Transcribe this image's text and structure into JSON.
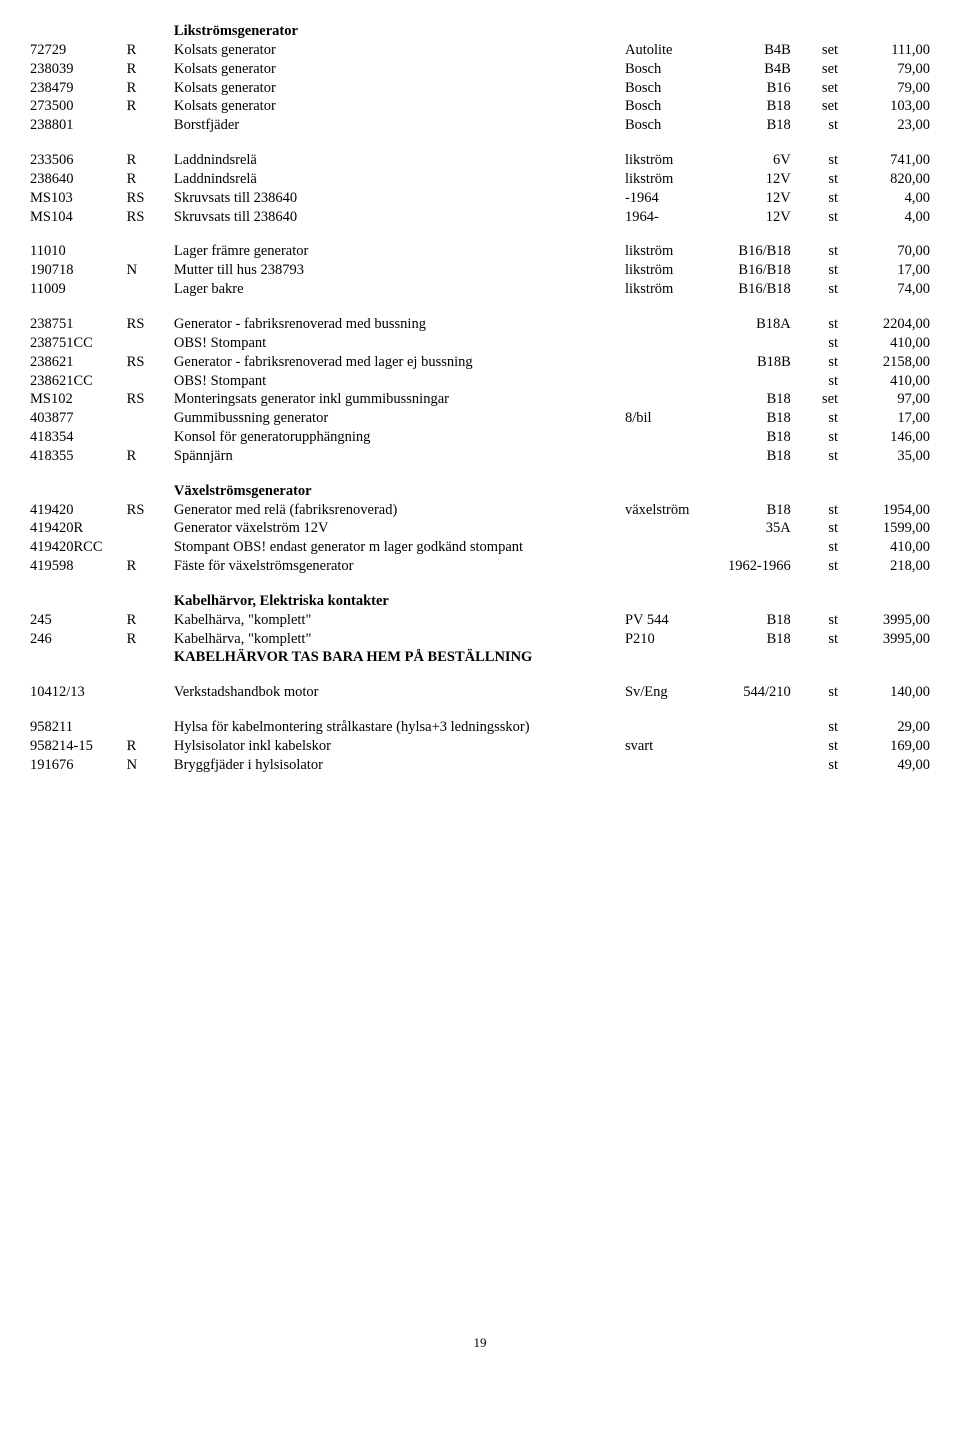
{
  "sections": [
    {
      "type": "heading",
      "text": "Likströmsgenerator"
    },
    {
      "type": "row",
      "c0": "72729",
      "c1": "R",
      "c2": "Kolsats generator",
      "c3": "Autolite",
      "c4": "B4B",
      "c5": "set",
      "c6": "111,00"
    },
    {
      "type": "row",
      "c0": "238039",
      "c1": "R",
      "c2": "Kolsats generator",
      "c3": "Bosch",
      "c4": "B4B",
      "c5": "set",
      "c6": "79,00"
    },
    {
      "type": "row",
      "c0": "238479",
      "c1": "R",
      "c2": "Kolsats generator",
      "c3": "Bosch",
      "c4": "B16",
      "c5": "set",
      "c6": "79,00"
    },
    {
      "type": "row",
      "c0": "273500",
      "c1": "R",
      "c2": "Kolsats generator",
      "c3": "Bosch",
      "c4": "B18",
      "c5": "set",
      "c6": "103,00"
    },
    {
      "type": "row",
      "c0": "238801",
      "c1": "",
      "c2": "Borstfjäder",
      "c3": "Bosch",
      "c4": "B18",
      "c5": "st",
      "c6": "23,00"
    },
    {
      "type": "spacer"
    },
    {
      "type": "row",
      "c0": "233506",
      "c1": "R",
      "c2": "Laddnindsrelä",
      "c3": "likström",
      "c4": "6V",
      "c5": "st",
      "c6": "741,00"
    },
    {
      "type": "row",
      "c0": "238640",
      "c1": "R",
      "c2": "Laddnindsrelä",
      "c3": "likström",
      "c4": "12V",
      "c5": "st",
      "c6": "820,00"
    },
    {
      "type": "row",
      "c0": "MS103",
      "c1": "RS",
      "c2": "Skruvsats till 238640",
      "c3": "-1964",
      "c4": "12V",
      "c5": "st",
      "c6": "4,00"
    },
    {
      "type": "row",
      "c0": "MS104",
      "c1": "RS",
      "c2": "Skruvsats till 238640",
      "c3": "1964-",
      "c4": "12V",
      "c5": "st",
      "c6": "4,00"
    },
    {
      "type": "spacer"
    },
    {
      "type": "row",
      "c0": "11010",
      "c1": "",
      "c2": "Lager främre generator",
      "c3": "likström",
      "c4": "B16/B18",
      "c5": "st",
      "c6": "70,00"
    },
    {
      "type": "row",
      "c0": "190718",
      "c1": "N",
      "c2": "Mutter till hus 238793",
      "c3": "likström",
      "c4": "B16/B18",
      "c5": "st",
      "c6": "17,00"
    },
    {
      "type": "row",
      "c0": "11009",
      "c1": "",
      "c2": "Lager bakre",
      "c3": "likström",
      "c4": "B16/B18",
      "c5": "st",
      "c6": "74,00"
    },
    {
      "type": "spacer"
    },
    {
      "type": "row",
      "c0": "238751",
      "c1": "RS",
      "c2": "Generator - fabriksrenoverad med bussning",
      "c3": "",
      "c4": "B18A",
      "c5": "st",
      "c6": "2204,00"
    },
    {
      "type": "row",
      "c0": "238751CC",
      "c1": "",
      "c2": "OBS! Stompant",
      "c3": "",
      "c4": "",
      "c5": "st",
      "c6": "410,00"
    },
    {
      "type": "row",
      "c0": "238621",
      "c1": "RS",
      "c2": "Generator - fabriksrenoverad med lager ej bussning",
      "c3": "",
      "c4": "B18B",
      "c5": "st",
      "c6": "2158,00"
    },
    {
      "type": "row",
      "c0": "238621CC",
      "c1": "",
      "c2": "OBS! Stompant",
      "c3": "",
      "c4": "",
      "c5": "st",
      "c6": "410,00"
    },
    {
      "type": "row",
      "c0": "MS102",
      "c1": "RS",
      "c2": "Monteringsats generator inkl gummibussningar",
      "c3": "",
      "c4": "B18",
      "c5": "set",
      "c6": "97,00"
    },
    {
      "type": "row",
      "c0": "403877",
      "c1": "",
      "c2": "Gummibussning generator",
      "c3": "8/bil",
      "c4": "B18",
      "c5": "st",
      "c6": "17,00"
    },
    {
      "type": "row",
      "c0": "418354",
      "c1": "",
      "c2": "Konsol för generatorupphängning",
      "c3": "",
      "c4": "B18",
      "c5": "st",
      "c6": "146,00"
    },
    {
      "type": "row",
      "c0": "418355",
      "c1": "R",
      "c2": "Spännjärn",
      "c3": "",
      "c4": "B18",
      "c5": "st",
      "c6": "35,00"
    },
    {
      "type": "spacer"
    },
    {
      "type": "heading",
      "text": "Växelströmsgenerator"
    },
    {
      "type": "row",
      "c0": "419420",
      "c1": "RS",
      "c2": "Generator med relä (fabriksrenoverad)",
      "c3": "växelström",
      "c4": "B18",
      "c5": "st",
      "c6": "1954,00"
    },
    {
      "type": "row",
      "c0": "419420R",
      "c1": "",
      "c2": "Generator växelström 12V",
      "c3": "",
      "c4": "35A",
      "c5": "st",
      "c6": "1599,00"
    },
    {
      "type": "row",
      "c0": "419420RCC",
      "c1": "",
      "c2": "Stompant OBS! endast generator m lager godkänd stompant",
      "c3": "",
      "c4": "",
      "c5": "st",
      "c6": "410,00"
    },
    {
      "type": "row",
      "c0": "419598",
      "c1": "R",
      "c2": "Fäste för  växelströmsgenerator",
      "c3": "",
      "c4": "1962-1966",
      "c5": "st",
      "c6": "218,00"
    },
    {
      "type": "spacer"
    },
    {
      "type": "heading",
      "text": "Kabelhärvor, Elektriska kontakter"
    },
    {
      "type": "row",
      "c0": "245",
      "c1": "R",
      "c2": "Kabelhärva, \"komplett\"",
      "c3": "PV 544",
      "c4": "B18",
      "c5": "st",
      "c6": "3995,00"
    },
    {
      "type": "row",
      "c0": "246",
      "c1": "R",
      "c2": "Kabelhärva, \"komplett\"",
      "c3": "P210",
      "c4": "B18",
      "c5": "st",
      "c6": "3995,00"
    },
    {
      "type": "boldline",
      "text": "KABELHÄRVOR TAS BARA HEM PÅ BESTÄLLNING"
    },
    {
      "type": "spacer"
    },
    {
      "type": "row",
      "c0": "10412/13",
      "c1": "",
      "c2": "Verkstadshandbok motor",
      "c3": "Sv/Eng",
      "c4": "544/210",
      "c5": "st",
      "c6": "140,00"
    },
    {
      "type": "spacer"
    },
    {
      "type": "row",
      "c0": "958211",
      "c1": "",
      "c2": "Hylsa för kabelmontering strålkastare (hylsa+3 ledningsskor)",
      "c3": "",
      "c4": "",
      "c5": "st",
      "c6": "29,00"
    },
    {
      "type": "row",
      "c0": "958214-15",
      "c1": "R",
      "c2": "Hylsisolator inkl kabelskor",
      "c3": "svart",
      "c4": "",
      "c5": "st",
      "c6": "169,00"
    },
    {
      "type": "row",
      "c0": "191676",
      "c1": "N",
      "c2": "Bryggfjäder i hylsisolator",
      "c3": "",
      "c4": "",
      "c5": "st",
      "c6": "49,00"
    }
  ],
  "pageNumber": "19"
}
